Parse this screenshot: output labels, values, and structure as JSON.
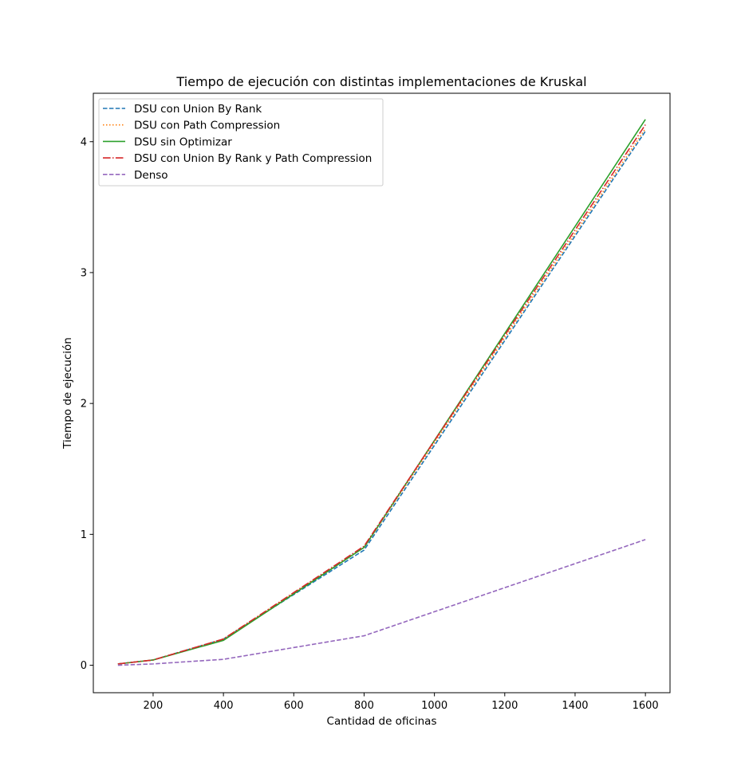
{
  "chart_data": {
    "type": "line",
    "title": "Tiempo de ejecución con distintas implementaciones de Kruskal",
    "xlabel": "Cantidad de oficinas",
    "ylabel": "Tiempo de ejecución",
    "x": [
      100,
      200,
      400,
      800,
      1600
    ],
    "xlim": [
      30,
      1670
    ],
    "ylim": [
      -0.21,
      4.37
    ],
    "xticks": [
      200,
      400,
      600,
      800,
      1000,
      1200,
      1400,
      1600
    ],
    "yticks": [
      0,
      1,
      2,
      3,
      4
    ],
    "grid": false,
    "legend_position": "top-left",
    "series": [
      {
        "name": "DSU con Union By Rank",
        "color": "#1f77b4",
        "linestyle": "dashed",
        "values": [
          0.01,
          0.04,
          0.2,
          0.88,
          4.08
        ]
      },
      {
        "name": "DSU con Path Compression",
        "color": "#ff7f0e",
        "linestyle": "dotted",
        "values": [
          0.01,
          0.04,
          0.2,
          0.9,
          4.1
        ]
      },
      {
        "name": "DSU sin Optimizar",
        "color": "#2ca02c",
        "linestyle": "solid",
        "values": [
          0.01,
          0.04,
          0.19,
          0.9,
          4.17
        ]
      },
      {
        "name": "DSU con Union By Rank y Path Compression",
        "color": "#d62728",
        "linestyle": "dashdot",
        "values": [
          0.01,
          0.04,
          0.2,
          0.91,
          4.13
        ]
      },
      {
        "name": "Denso",
        "color": "#9467bd",
        "linestyle": "dashed",
        "values": [
          0.0,
          0.01,
          0.045,
          0.225,
          0.96
        ]
      }
    ]
  }
}
